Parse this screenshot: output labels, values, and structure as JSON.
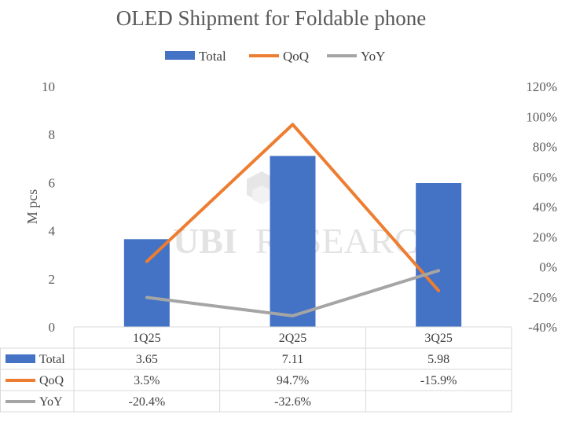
{
  "chart_data": {
    "type": "bar",
    "title": "OLED Shipment for Foldable phone",
    "categories": [
      "1Q25",
      "2Q25",
      "3Q25"
    ],
    "ylabel": "M pcs",
    "ylim": [
      0,
      10
    ],
    "y_ticks": [
      "0",
      "2",
      "4",
      "6",
      "8",
      "10"
    ],
    "y2lim": [
      -40,
      120
    ],
    "y2_ticks": [
      "-40%",
      "-20%",
      "0%",
      "20%",
      "40%",
      "60%",
      "80%",
      "100%",
      "120%"
    ],
    "grid": false,
    "legend_position": "top",
    "series": [
      {
        "name": "Total",
        "type": "bar",
        "axis": "left",
        "color": "#4472c4",
        "values": [
          3.65,
          7.11,
          5.98
        ],
        "labels": [
          "3.65",
          "7.11",
          "5.98"
        ]
      },
      {
        "name": "QoQ",
        "type": "line",
        "axis": "right",
        "color": "#ed7d31",
        "values": [
          3.5,
          94.7,
          -15.9
        ],
        "labels": [
          "3.5%",
          "94.7%",
          "-15.9%"
        ]
      },
      {
        "name": "YoY",
        "type": "line",
        "axis": "right",
        "color": "#a5a5a5",
        "values": [
          -20.4,
          -32.6,
          -2.5
        ],
        "labels": [
          "-20.4%",
          "-32.6%",
          ""
        ]
      }
    ]
  },
  "watermark": {
    "logo": "UBI",
    "text": "RESEARCH"
  }
}
